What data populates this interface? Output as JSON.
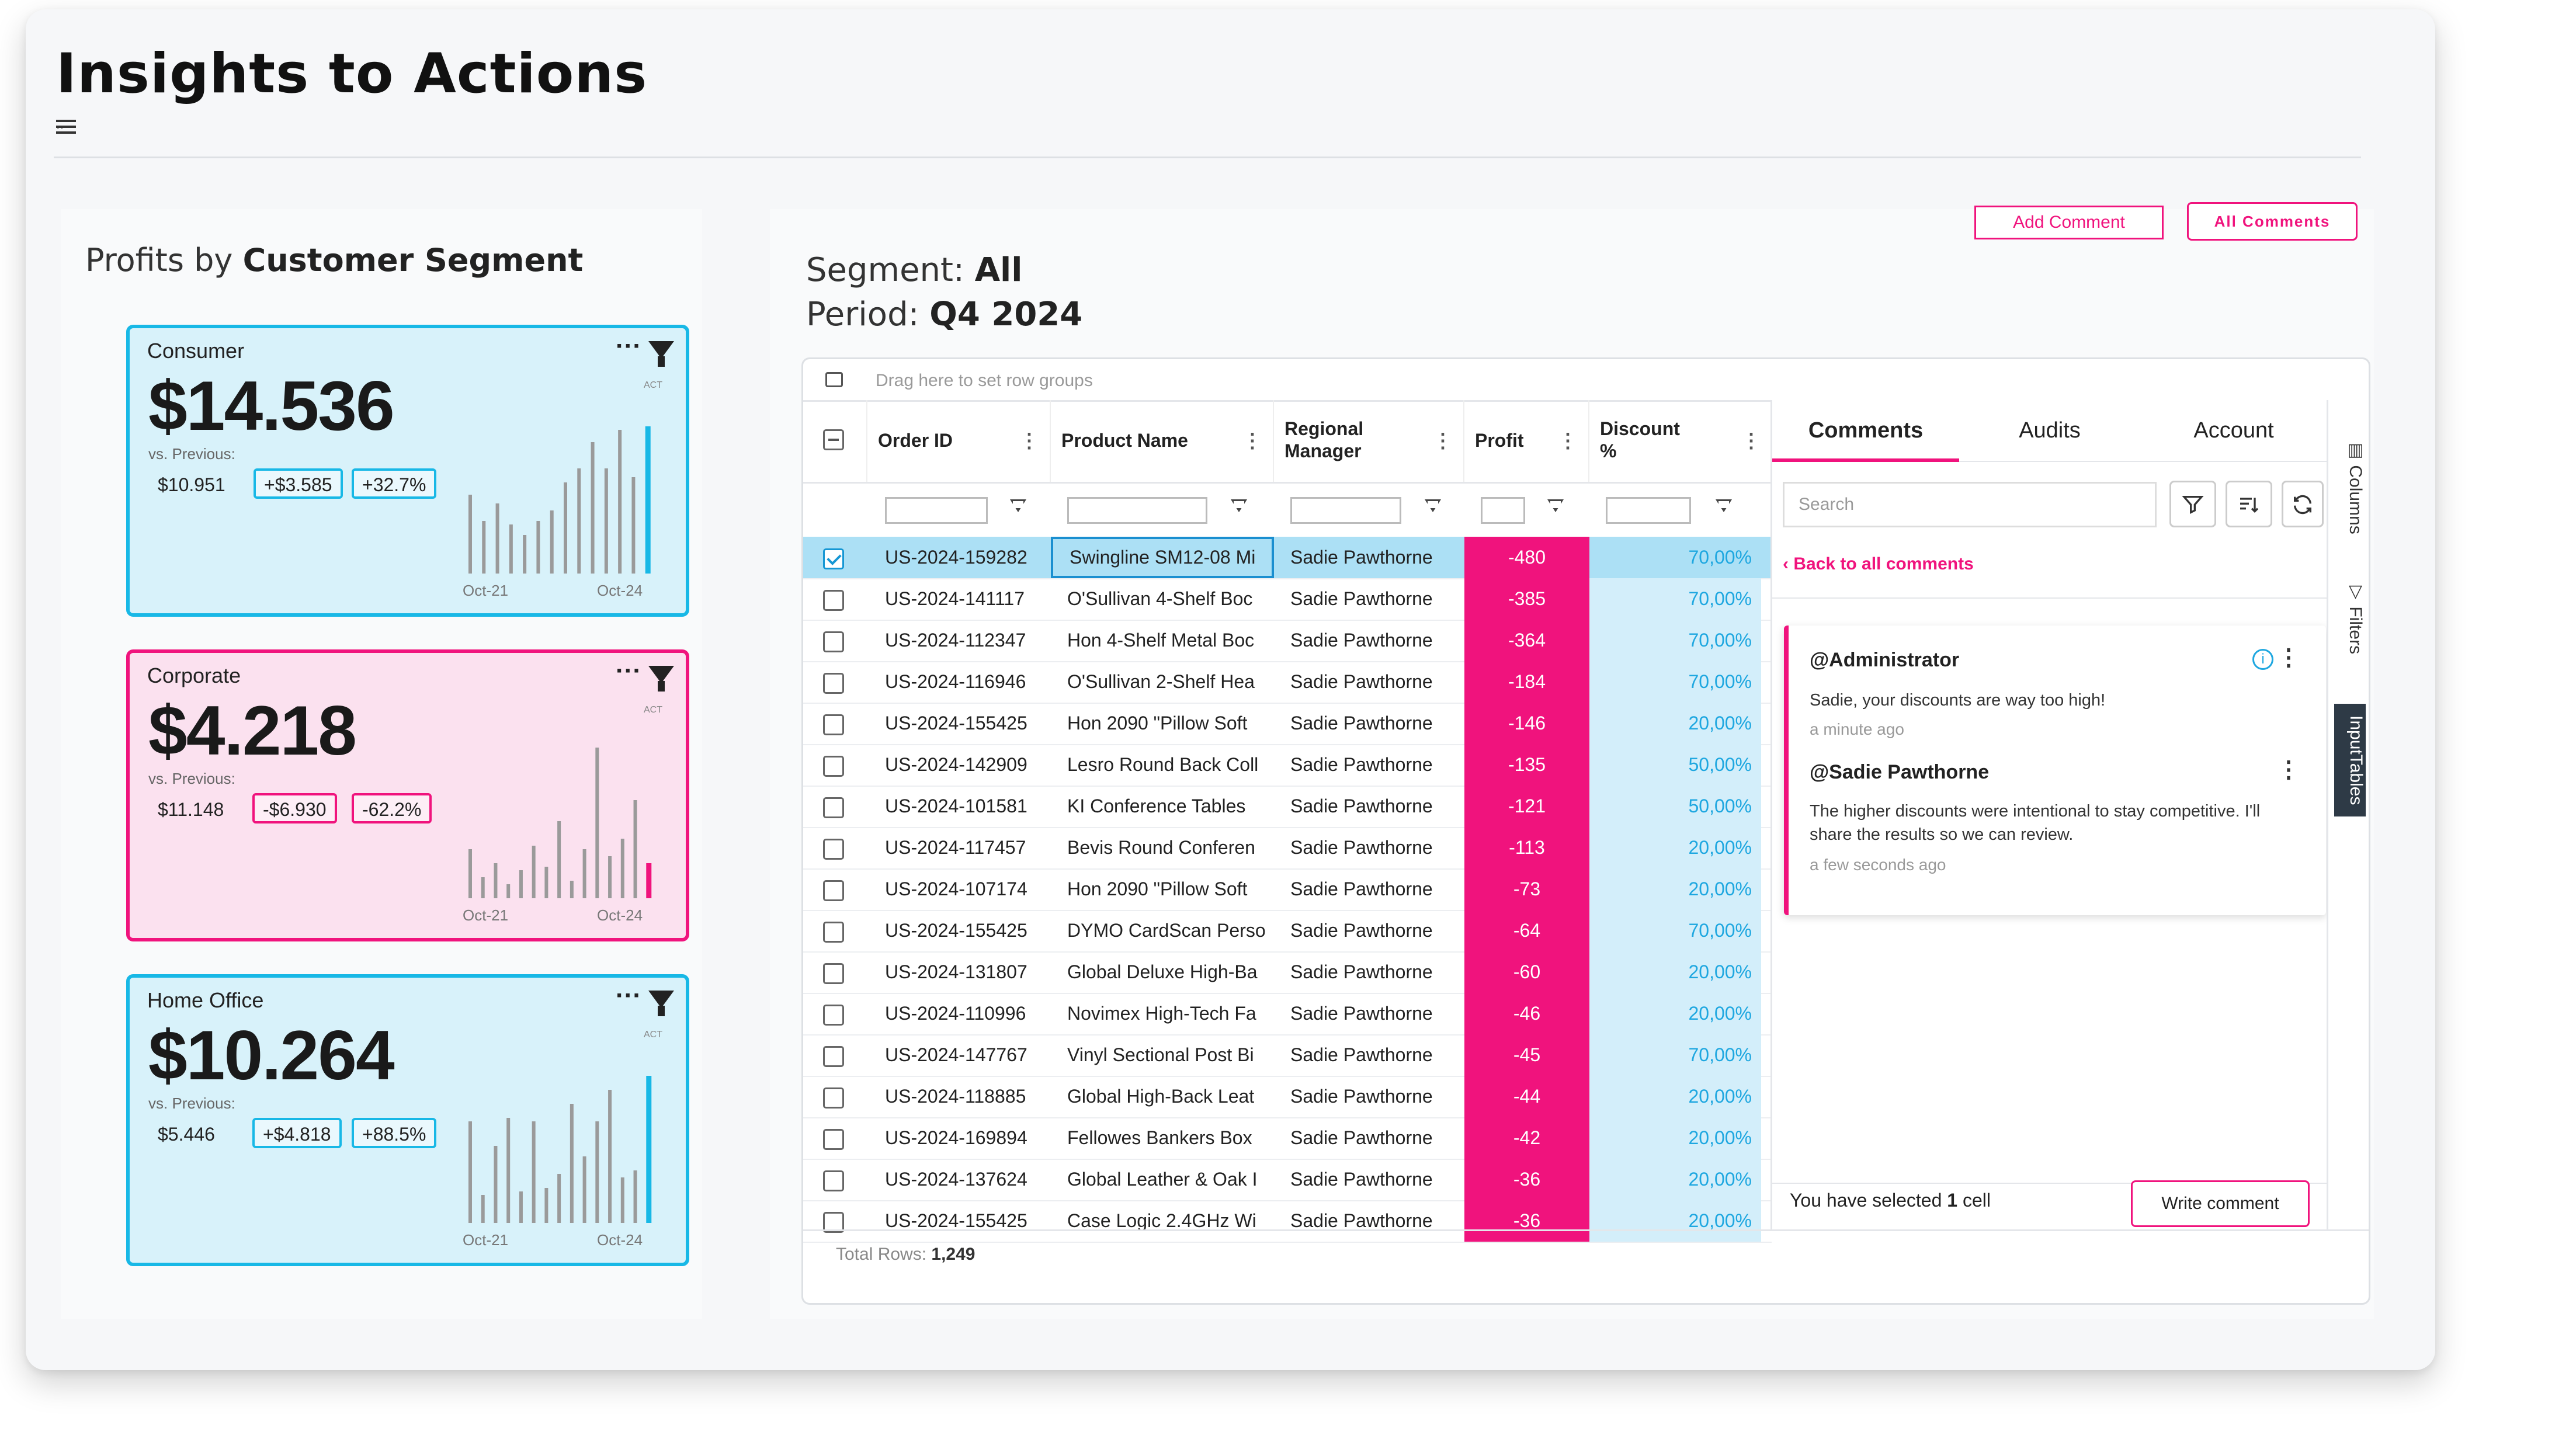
{
  "page": {
    "title": "Insights to Actions",
    "subtitle": ".."
  },
  "left": {
    "title_prefix": "Profits by",
    "title_bold": "Customer Segment",
    "cards": [
      {
        "segment": "Consumer",
        "value": "$14.536",
        "vs_label": "vs. Previous:",
        "previous": "$10.951",
        "delta": "+$3.585",
        "pct": "+32.7%",
        "theme": "blue",
        "act": "ACT",
        "x_start": "Oct-21",
        "x_end": "Oct-24",
        "bars": [
          0.45,
          0.3,
          0.4,
          0.28,
          0.22,
          0.3,
          0.36,
          0.52,
          0.6,
          0.75,
          0.6,
          0.82,
          0.55,
          0.84
        ],
        "accent": "#18b8e6"
      },
      {
        "segment": "Corporate",
        "value": "$4.218",
        "vs_label": "vs. Previous:",
        "previous": "$11.148",
        "delta": "-$6.930",
        "pct": "-62.2%",
        "theme": "pink",
        "act": "ACT",
        "x_start": "Oct-21",
        "x_end": "Oct-24",
        "bars": [
          0.28,
          0.12,
          0.2,
          0.08,
          0.16,
          0.3,
          0.18,
          0.44,
          0.1,
          0.28,
          0.86,
          0.24,
          0.34,
          0.56,
          0.2
        ],
        "accent": "#f0137d"
      },
      {
        "segment": "Home Office",
        "value": "$10.264",
        "vs_label": "vs. Previous:",
        "previous": "$5.446",
        "delta": "+$4.818",
        "pct": "+88.5%",
        "theme": "blue",
        "act": "ACT",
        "x_start": "Oct-21",
        "x_end": "Oct-24",
        "bars": [
          0.58,
          0.16,
          0.44,
          0.6,
          0.18,
          0.58,
          0.2,
          0.28,
          0.68,
          0.38,
          0.58,
          0.76,
          0.26,
          0.3,
          0.84
        ],
        "accent": "#18b8e6"
      }
    ]
  },
  "right": {
    "add_comment": "Add Comment",
    "all_comments": "All Comments",
    "segment_label": "Segment:",
    "segment_value": "All",
    "period_label": "Period:",
    "period_value": "Q4 2024",
    "group_hint": "Drag here to set row groups",
    "columns": [
      "Order ID",
      "Product Name",
      "Regional Manager",
      "Profit",
      "Discount %"
    ],
    "rows": [
      {
        "id": "US-2024-159282",
        "product": "Swingline SM12-08 Mi",
        "manager": "Sadie Pawthorne",
        "profit": "-480",
        "discount": "70,00%",
        "selected": true
      },
      {
        "id": "US-2024-141117",
        "product": "O'Sullivan 4-Shelf Boc",
        "manager": "Sadie Pawthorne",
        "profit": "-385",
        "discount": "70,00%"
      },
      {
        "id": "US-2024-112347",
        "product": "Hon 4-Shelf Metal Boc",
        "manager": "Sadie Pawthorne",
        "profit": "-364",
        "discount": "70,00%"
      },
      {
        "id": "US-2024-116946",
        "product": "O'Sullivan 2-Shelf Hea",
        "manager": "Sadie Pawthorne",
        "profit": "-184",
        "discount": "70,00%"
      },
      {
        "id": "US-2024-155425",
        "product": "Hon 2090 \"Pillow Soft",
        "manager": "Sadie Pawthorne",
        "profit": "-146",
        "discount": "20,00%"
      },
      {
        "id": "US-2024-142909",
        "product": "Lesro Round Back Coll",
        "manager": "Sadie Pawthorne",
        "profit": "-135",
        "discount": "50,00%"
      },
      {
        "id": "US-2024-101581",
        "product": "KI Conference Tables",
        "manager": "Sadie Pawthorne",
        "profit": "-121",
        "discount": "50,00%"
      },
      {
        "id": "US-2024-117457",
        "product": "Bevis Round Conferen",
        "manager": "Sadie Pawthorne",
        "profit": "-113",
        "discount": "20,00%"
      },
      {
        "id": "US-2024-107174",
        "product": "Hon 2090 \"Pillow Soft",
        "manager": "Sadie Pawthorne",
        "profit": "-73",
        "discount": "20,00%"
      },
      {
        "id": "US-2024-155425",
        "product": "DYMO CardScan Perso",
        "manager": "Sadie Pawthorne",
        "profit": "-64",
        "discount": "70,00%"
      },
      {
        "id": "US-2024-131807",
        "product": "Global Deluxe High-Ba",
        "manager": "Sadie Pawthorne",
        "profit": "-60",
        "discount": "20,00%"
      },
      {
        "id": "US-2024-110996",
        "product": "Novimex High-Tech Fa",
        "manager": "Sadie Pawthorne",
        "profit": "-46",
        "discount": "20,00%"
      },
      {
        "id": "US-2024-147767",
        "product": "Vinyl Sectional Post Bi",
        "manager": "Sadie Pawthorne",
        "profit": "-45",
        "discount": "70,00%"
      },
      {
        "id": "US-2024-118885",
        "product": "Global High-Back Leat",
        "manager": "Sadie Pawthorne",
        "profit": "-44",
        "discount": "20,00%"
      },
      {
        "id": "US-2024-169894",
        "product": "Fellowes Bankers Box",
        "manager": "Sadie Pawthorne",
        "profit": "-42",
        "discount": "20,00%"
      },
      {
        "id": "US-2024-137624",
        "product": "Global Leather & Oak I",
        "manager": "Sadie Pawthorne",
        "profit": "-36",
        "discount": "20,00%"
      },
      {
        "id": "US-2024-155425",
        "product": "Case Logic 2.4GHz Wi",
        "manager": "Sadie Pawthorne",
        "profit": "-36",
        "discount": "20,00%"
      }
    ],
    "total_label": "Total Rows:",
    "total_value": "1,249"
  },
  "comments": {
    "tabs": [
      "Comments",
      "Audits",
      "Account"
    ],
    "search_placeholder": "Search",
    "back": "Back to all comments",
    "thread": [
      {
        "author": "@Administrator",
        "text": "Sadie, your discounts are way too high!",
        "time": "a minute ago"
      },
      {
        "author": "@Sadie Pawthorne",
        "text": "The higher discounts were intentional to stay competitive. I'll share the results so we can review.",
        "time": "a few seconds ago"
      }
    ],
    "selection_prefix": "You have selected",
    "selection_count": "1",
    "selection_suffix": "cell",
    "write": "Write comment"
  },
  "sidebar": {
    "columns": "Columns",
    "filters": "Filters",
    "inputtables": "InputTables"
  },
  "colors": {
    "pink": "#f0137d",
    "blue": "#18b8e6"
  }
}
